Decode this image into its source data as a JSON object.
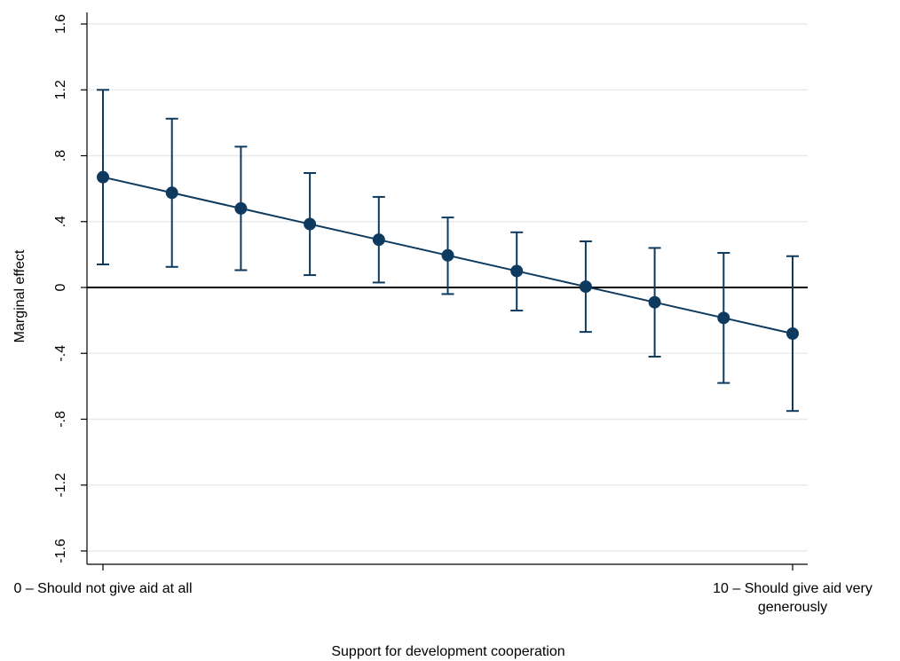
{
  "chart_data": {
    "type": "line",
    "xlabel": "Support for development cooperation",
    "ylabel": "Marginal effect",
    "xlim": [
      0,
      10
    ],
    "ylim": [
      -1.6,
      1.6
    ],
    "grid": true,
    "reference_line_y": 0,
    "y_ticks": [
      {
        "value": 1.6,
        "label": "1.6"
      },
      {
        "value": 1.2,
        "label": "1.2"
      },
      {
        "value": 0.8,
        "label": ".8"
      },
      {
        "value": 0.4,
        "label": ".4"
      },
      {
        "value": 0,
        "label": "0"
      },
      {
        "value": -0.4,
        "label": "-.4"
      },
      {
        "value": -0.8,
        "label": "-.8"
      },
      {
        "value": -1.2,
        "label": "-1.2"
      },
      {
        "value": -1.6,
        "label": "-1.6"
      }
    ],
    "x_ticks": [
      {
        "value": 0,
        "label_lines": [
          "0 – Should not give aid at all"
        ]
      },
      {
        "value": 10,
        "label_lines": [
          "10 – Should give aid very",
          "generously"
        ]
      }
    ],
    "x": [
      0,
      1,
      2,
      3,
      4,
      5,
      6,
      7,
      8,
      9,
      10
    ],
    "y": [
      0.67,
      0.575,
      0.48,
      0.385,
      0.29,
      0.195,
      0.1,
      0.005,
      -0.09,
      -0.185,
      -0.28
    ],
    "ci_lower": [
      0.14,
      0.125,
      0.105,
      0.075,
      0.03,
      -0.04,
      -0.14,
      -0.27,
      -0.42,
      -0.58,
      -0.75
    ],
    "ci_upper": [
      1.2,
      1.025,
      0.855,
      0.695,
      0.55,
      0.425,
      0.335,
      0.28,
      0.24,
      0.21,
      0.19
    ],
    "colors": {
      "series": "#0d3a5e",
      "grid": "#e6ecee",
      "axis": "#000000",
      "background": "#ffffff"
    }
  }
}
